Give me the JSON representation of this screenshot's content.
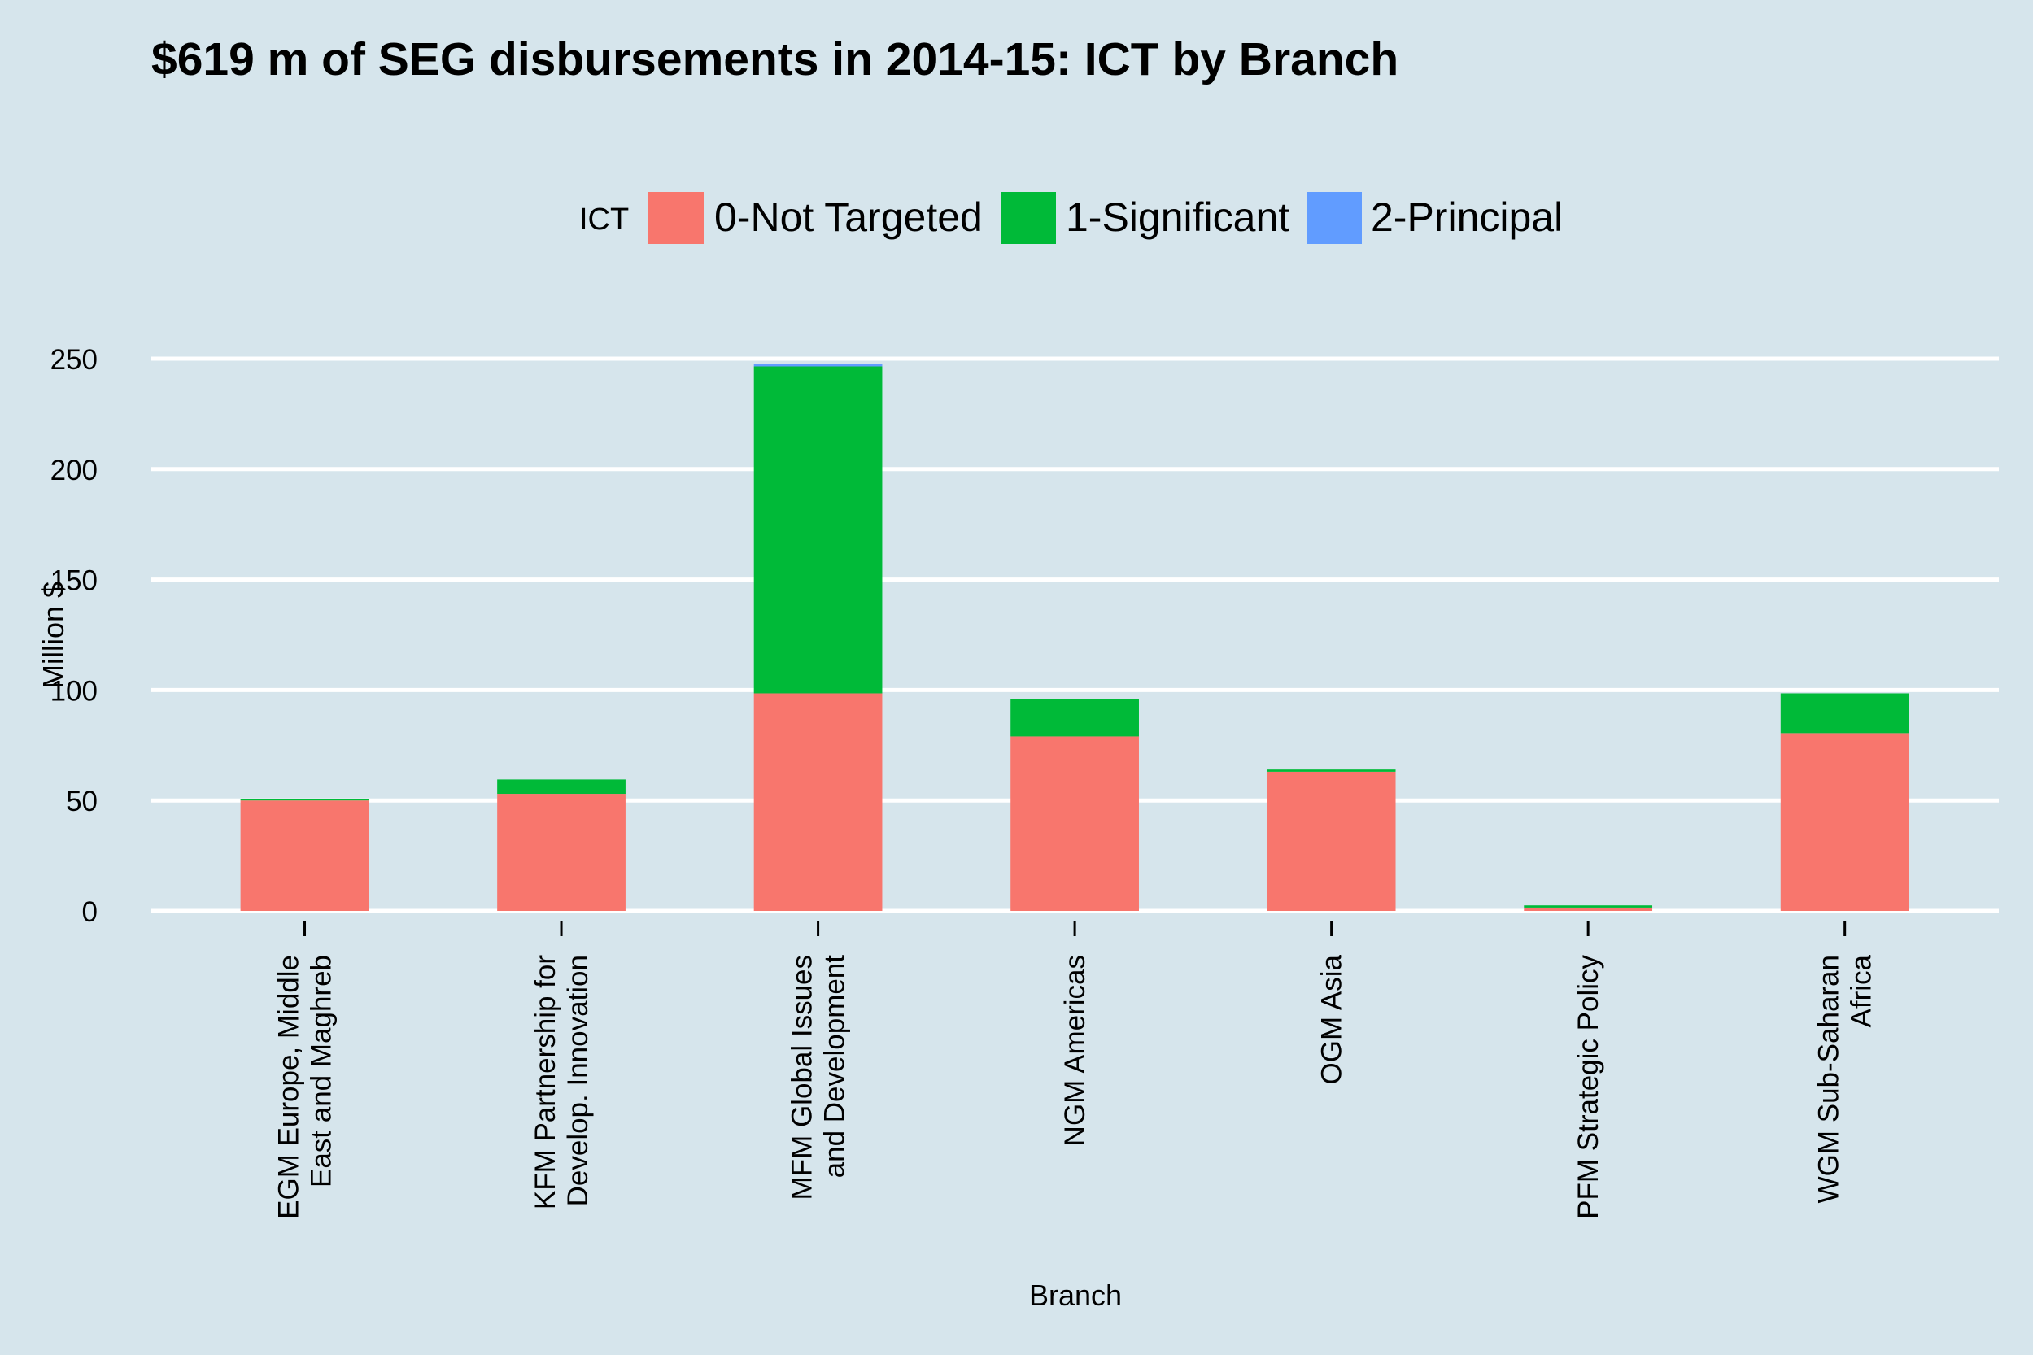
{
  "chart_data": {
    "type": "stacked_bar",
    "title": "$619 m of SEG disbursements in 2014-15: ICT by Branch",
    "legend_title": "ICT",
    "x_label": "Branch",
    "y_label": "Million $",
    "categories": [
      "EGM Europe, Middle\nEast and Maghreb",
      "KFM Partnership for\nDevelop. Innovation",
      "MFM Global Issues\nand Development",
      "NGM Americas",
      "OGM Asia",
      "PFM Strategic Policy",
      "WGM Sub-Saharan\nAfrica"
    ],
    "series": [
      {
        "name": "0-Not Targeted",
        "color": "#F8766D",
        "values": [
          50,
          53,
          98.5,
          79,
          63,
          1.5,
          80.5
        ]
      },
      {
        "name": "1-Significant",
        "color": "#00BA38",
        "values": [
          0.7,
          6.5,
          148,
          17,
          1,
          1,
          18
        ]
      },
      {
        "name": "2-Principal",
        "color": "#619CFF",
        "values": [
          0,
          0,
          1.2,
          0,
          0,
          0,
          0
        ]
      }
    ],
    "ylim": [
      -12.4,
      260.1
    ],
    "yticks": [
      0,
      50,
      100,
      150,
      200,
      250
    ],
    "grid": true,
    "legend_position": "top"
  }
}
